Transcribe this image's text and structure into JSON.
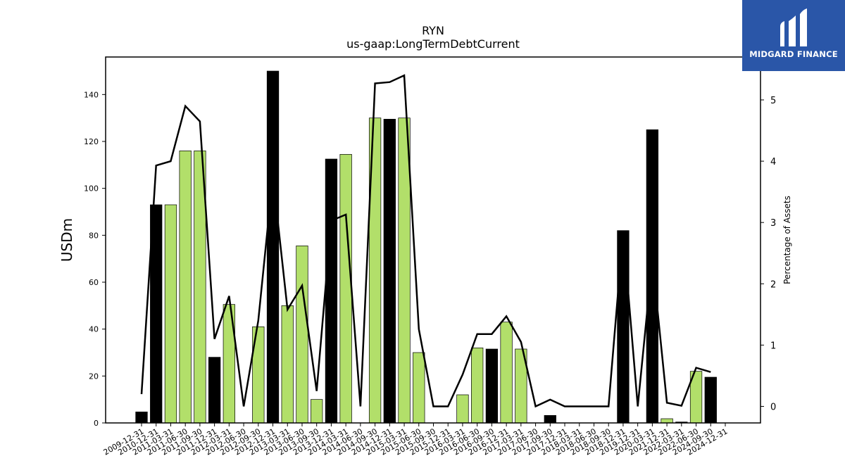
{
  "chart_data": {
    "type": "bar",
    "title": "RYN",
    "subtitle": "us-gaap:LongTermDebtCurrent",
    "ylabel": "USDm",
    "ylabel_right": "Percentage of Assets",
    "ylim": [
      0,
      156
    ],
    "ylim_right": [
      -0.27,
      5.7
    ],
    "yticks": [
      0,
      20,
      40,
      60,
      80,
      100,
      120,
      140
    ],
    "yticks_right": [
      0,
      1,
      2,
      3,
      4,
      5
    ],
    "grid": false,
    "categories": [
      "2009-12-31",
      "2010-12-31",
      "2011-03-31",
      "2011-06-30",
      "2011-09-30",
      "2011-12-31",
      "2012-03-31",
      "2012-06-30",
      "2012-09-30",
      "2012-12-31",
      "2013-03-31",
      "2013-06-30",
      "2013-09-30",
      "2013-12-31",
      "2014-03-31",
      "2014-06-30",
      "2014-09-30",
      "2014-12-31",
      "2015-03-31",
      "2015-06-30",
      "2015-09-30",
      "2015-12-31",
      "2016-03-31",
      "2016-06-30",
      "2016-09-30",
      "2016-12-31",
      "2017-03-31",
      "2017-06-30",
      "2017-09-30",
      "2017-12-31",
      "2018-03-31",
      "2018-06-30",
      "2018-09-30",
      "2018-12-31",
      "2019-12-31",
      "2020-03-31",
      "2021-12-31",
      "2022-03-31",
      "2022-06-30",
      "2024-09-30",
      "2024-12-31"
    ],
    "series": [
      {
        "type": "bar",
        "values": [
          4.7,
          93,
          93,
          116,
          116,
          28,
          50.5,
          0,
          41,
          150,
          50,
          75.5,
          10,
          112.5,
          114.5,
          0,
          130,
          129.5,
          130,
          30,
          0,
          0,
          12,
          32,
          31.5,
          43,
          31.5,
          0,
          3.2,
          0,
          0,
          0,
          0,
          82,
          0,
          125,
          1.8,
          0.4,
          22,
          19.5,
          0
        ],
        "colors": [
          "#000000",
          "#000000",
          "#b2df6a",
          "#b2df6a",
          "#b2df6a",
          "#000000",
          "#b2df6a",
          "#b2df6a",
          "#b2df6a",
          "#000000",
          "#b2df6a",
          "#b2df6a",
          "#b2df6a",
          "#000000",
          "#b2df6a",
          "#b2df6a",
          "#b2df6a",
          "#000000",
          "#b2df6a",
          "#b2df6a",
          "#b2df6a",
          "#b2df6a",
          "#b2df6a",
          "#b2df6a",
          "#000000",
          "#b2df6a",
          "#b2df6a",
          "#b2df6a",
          "#000000",
          "#b2df6a",
          "#b2df6a",
          "#b2df6a",
          "#b2df6a",
          "#000000",
          "#b2df6a",
          "#000000",
          "#b2df6a",
          "#000000",
          "#b2df6a",
          "#000000",
          "#b2df6a"
        ]
      },
      {
        "type": "line",
        "axis": "right",
        "color": "#000000",
        "values": [
          0.2,
          3.93,
          4.0,
          4.9,
          4.65,
          1.1,
          1.8,
          0,
          1.4,
          3.75,
          1.58,
          1.97,
          0.25,
          3.03,
          3.13,
          0,
          5.27,
          5.29,
          5.4,
          1.26,
          0,
          0,
          0.52,
          1.18,
          1.18,
          1.47,
          1.05,
          0,
          0.11,
          0,
          0,
          0,
          0,
          2.85,
          0,
          2.4,
          0.06,
          0.01,
          0.63,
          0.56,
          null
        ]
      }
    ]
  },
  "logo": {
    "text": "MIDGARD FINANCE",
    "background": "#2a56a8"
  }
}
